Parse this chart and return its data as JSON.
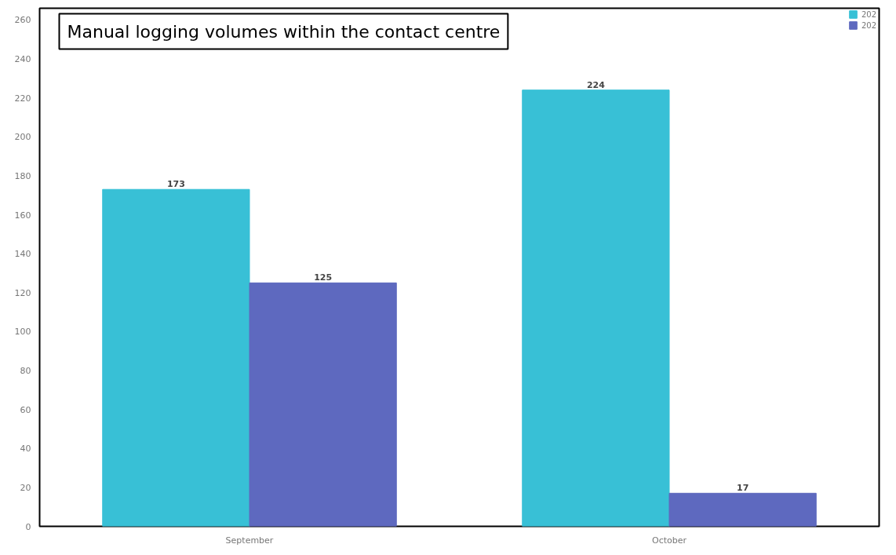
{
  "chart_data": {
    "type": "bar",
    "title": "Manual logging volumes within the contact centre",
    "categories": [
      "September",
      "October"
    ],
    "series": [
      {
        "name": "202",
        "color": "#38c0d6",
        "values": [
          173,
          224
        ]
      },
      {
        "name": "202",
        "color": "#5e69bf",
        "values": [
          125,
          17
        ]
      }
    ],
    "ylim": [
      0,
      266
    ],
    "yticks": [
      0,
      20,
      40,
      60,
      80,
      100,
      120,
      140,
      160,
      180,
      200,
      220,
      240,
      260
    ],
    "grid": false,
    "legend": "top right",
    "data_labels": true
  }
}
